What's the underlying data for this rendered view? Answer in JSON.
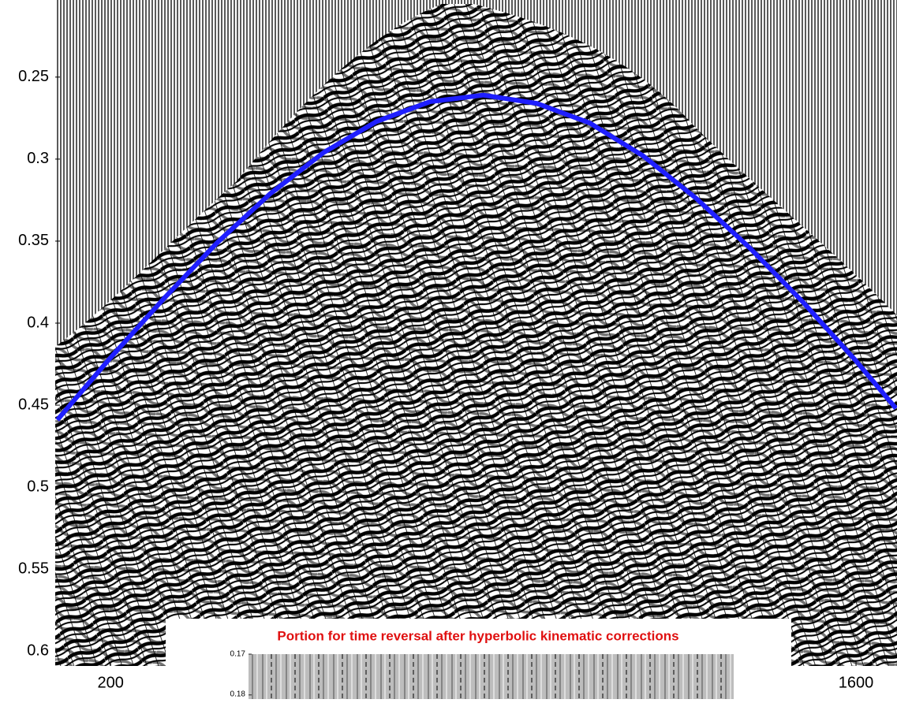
{
  "chart_data": {
    "type": "line",
    "xlim": [
      96,
      1677
    ],
    "ylim": [
      0.203,
      0.609
    ],
    "y_inverted": true,
    "xticks": [
      200,
      1600
    ],
    "yticks": [
      0.25,
      0.3,
      0.35,
      0.4,
      0.45,
      0.5,
      0.55,
      0.6
    ],
    "series": [
      {
        "color": "#1f1fff",
        "x": [
          100,
          200,
          300,
          400,
          500,
          600,
          700,
          800,
          900,
          1000,
          1100,
          1200,
          1300,
          1400,
          1500,
          1600,
          1675
        ],
        "values": [
          0.459,
          0.421,
          0.385,
          0.351,
          0.321,
          0.296,
          0.277,
          0.265,
          0.261,
          0.266,
          0.278,
          0.298,
          0.324,
          0.354,
          0.387,
          0.423,
          0.452
        ]
      }
    ],
    "inset": {
      "title": "Portion for time reversal after hyperbolic kinematic corrections",
      "title_color": "#e01010",
      "ylim": [
        0.17,
        0.181
      ],
      "yticks": [
        0.17,
        0.18
      ]
    }
  }
}
